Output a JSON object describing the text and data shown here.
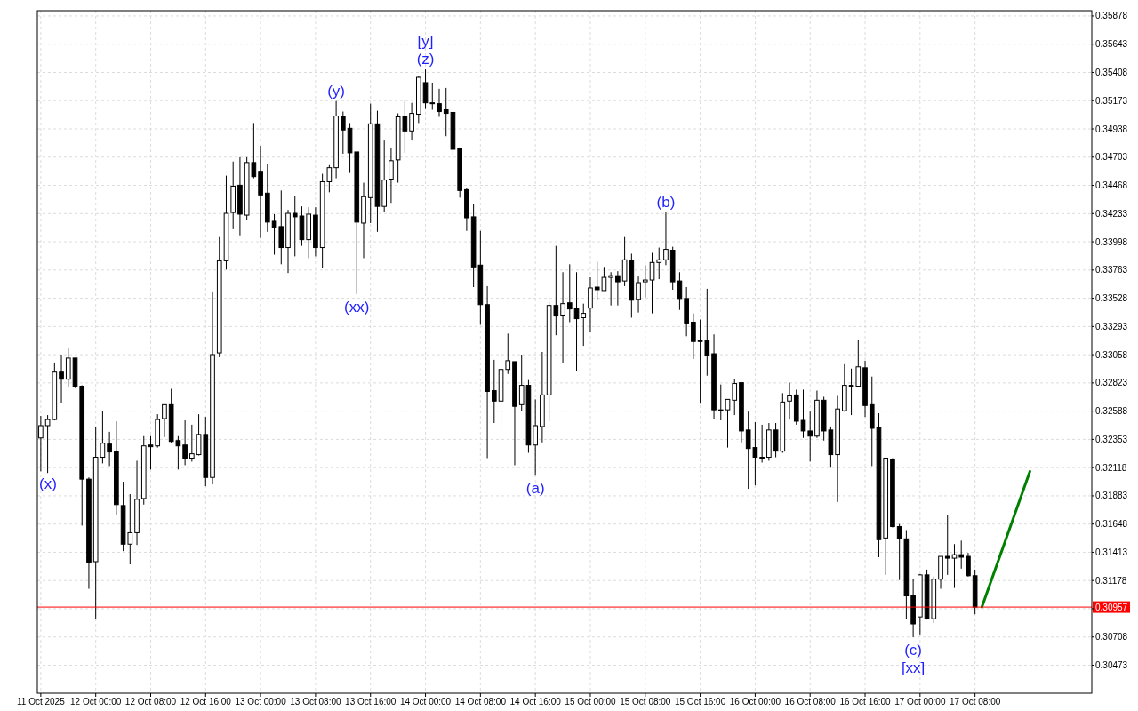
{
  "chart_data": {
    "type": "candlestick",
    "x": [
      "2025-10-11T16:00",
      "2025-10-11T17:00",
      "2025-10-11T18:00",
      "2025-10-11T19:00",
      "2025-10-11T20:00",
      "2025-10-11T21:00",
      "2025-10-11T22:00",
      "2025-10-11T23:00",
      "2025-10-12T00:00",
      "2025-10-12T01:00",
      "2025-10-12T02:00",
      "2025-10-12T03:00",
      "2025-10-12T04:00",
      "2025-10-12T05:00",
      "2025-10-12T06:00",
      "2025-10-12T07:00",
      "2025-10-12T08:00",
      "2025-10-12T09:00",
      "2025-10-12T10:00",
      "2025-10-12T11:00",
      "2025-10-12T12:00",
      "2025-10-12T13:00",
      "2025-10-12T14:00",
      "2025-10-12T15:00",
      "2025-10-12T16:00",
      "2025-10-12T17:00",
      "2025-10-12T18:00",
      "2025-10-12T19:00",
      "2025-10-12T20:00",
      "2025-10-12T21:00",
      "2025-10-12T22:00",
      "2025-10-12T23:00",
      "2025-10-13T00:00",
      "2025-10-13T01:00",
      "2025-10-13T02:00",
      "2025-10-13T03:00",
      "2025-10-13T04:00",
      "2025-10-13T05:00",
      "2025-10-13T06:00",
      "2025-10-13T07:00",
      "2025-10-13T08:00",
      "2025-10-13T09:00",
      "2025-10-13T10:00",
      "2025-10-13T11:00",
      "2025-10-13T12:00",
      "2025-10-13T13:00",
      "2025-10-13T14:00",
      "2025-10-13T15:00",
      "2025-10-13T16:00",
      "2025-10-13T17:00",
      "2025-10-13T18:00",
      "2025-10-13T19:00",
      "2025-10-13T20:00",
      "2025-10-13T21:00",
      "2025-10-13T22:00",
      "2025-10-13T23:00",
      "2025-10-14T00:00",
      "2025-10-14T01:00",
      "2025-10-14T02:00",
      "2025-10-14T03:00",
      "2025-10-14T04:00",
      "2025-10-14T05:00",
      "2025-10-14T06:00",
      "2025-10-14T07:00",
      "2025-10-14T08:00",
      "2025-10-14T09:00",
      "2025-10-14T10:00",
      "2025-10-14T11:00",
      "2025-10-14T12:00",
      "2025-10-14T13:00",
      "2025-10-14T14:00",
      "2025-10-14T15:00",
      "2025-10-14T16:00",
      "2025-10-14T17:00",
      "2025-10-14T18:00",
      "2025-10-14T19:00",
      "2025-10-14T20:00",
      "2025-10-14T21:00",
      "2025-10-14T22:00",
      "2025-10-14T23:00",
      "2025-10-15T00:00",
      "2025-10-15T01:00",
      "2025-10-15T02:00",
      "2025-10-15T03:00",
      "2025-10-15T04:00",
      "2025-10-15T05:00",
      "2025-10-15T06:00",
      "2025-10-15T07:00",
      "2025-10-15T08:00",
      "2025-10-15T09:00",
      "2025-10-15T10:00",
      "2025-10-15T11:00",
      "2025-10-15T12:00",
      "2025-10-15T13:00",
      "2025-10-15T14:00",
      "2025-10-15T15:00",
      "2025-10-15T16:00",
      "2025-10-15T17:00",
      "2025-10-15T18:00",
      "2025-10-15T19:00",
      "2025-10-15T20:00",
      "2025-10-15T21:00",
      "2025-10-15T22:00",
      "2025-10-15T23:00",
      "2025-10-16T00:00",
      "2025-10-16T01:00",
      "2025-10-16T02:00",
      "2025-10-16T03:00",
      "2025-10-16T04:00",
      "2025-10-16T05:00",
      "2025-10-16T06:00",
      "2025-10-16T07:00",
      "2025-10-16T08:00",
      "2025-10-16T09:00",
      "2025-10-16T10:00",
      "2025-10-16T11:00",
      "2025-10-16T12:00",
      "2025-10-16T13:00",
      "2025-10-16T14:00",
      "2025-10-16T15:00",
      "2025-10-16T16:00",
      "2025-10-16T17:00",
      "2025-10-16T18:00",
      "2025-10-16T19:00",
      "2025-10-16T20:00",
      "2025-10-16T21:00",
      "2025-10-16T22:00",
      "2025-10-16T23:00",
      "2025-10-17T00:00",
      "2025-10-17T01:00",
      "2025-10-17T02:00",
      "2025-10-17T03:00",
      "2025-10-17T04:00",
      "2025-10-17T05:00",
      "2025-10-17T06:00",
      "2025-10-17T07:00",
      "2025-10-17T08:00"
    ],
    "ohlc": [
      [
        0.32365,
        0.32548,
        0.32087,
        0.32467
      ],
      [
        0.32467,
        0.32555,
        0.32073,
        0.32518
      ],
      [
        0.32518,
        0.32993,
        0.32511,
        0.32913
      ],
      [
        0.32913,
        0.33059,
        0.32657,
        0.32854
      ],
      [
        0.32854,
        0.3311,
        0.32789,
        0.3303
      ],
      [
        0.3303,
        0.3303,
        0.32781,
        0.32789
      ],
      [
        0.32796,
        0.32803,
        0.31635,
        0.32022
      ],
      [
        0.32022,
        0.32036,
        0.31109,
        0.31328
      ],
      [
        0.31335,
        0.3246,
        0.3086,
        0.32204
      ],
      [
        0.32204,
        0.32591,
        0.32153,
        0.32321
      ],
      [
        0.32314,
        0.32416,
        0.32131,
        0.32248
      ],
      [
        0.32255,
        0.32504,
        0.31722,
        0.3181
      ],
      [
        0.31802,
        0.32,
        0.31423,
        0.31481
      ],
      [
        0.31481,
        0.31897,
        0.31313,
        0.31576
      ],
      [
        0.31576,
        0.32175,
        0.31474,
        0.31854
      ],
      [
        0.31861,
        0.3238,
        0.3181,
        0.32299
      ],
      [
        0.32306,
        0.3238,
        0.32102,
        0.32292
      ],
      [
        0.32299,
        0.32562,
        0.32285,
        0.32518
      ],
      [
        0.32526,
        0.32642,
        0.32372,
        0.32642
      ],
      [
        0.32642,
        0.32774,
        0.32321,
        0.32336
      ],
      [
        0.32343,
        0.3238,
        0.32102,
        0.32299
      ],
      [
        0.32306,
        0.32511,
        0.32138,
        0.32197
      ],
      [
        0.32197,
        0.32475,
        0.32168,
        0.32233
      ],
      [
        0.32226,
        0.32562,
        0.32219,
        0.32394
      ],
      [
        0.32394,
        0.3254,
        0.31963,
        0.32036
      ],
      [
        0.32036,
        0.33585,
        0.31978,
        0.33059
      ],
      [
        0.33073,
        0.34038,
        0.33037,
        0.3384
      ],
      [
        0.3384,
        0.34549,
        0.33767,
        0.34235
      ],
      [
        0.34242,
        0.34666,
        0.34103,
        0.34461
      ],
      [
        0.34469,
        0.34702,
        0.34052,
        0.34228
      ],
      [
        0.3422,
        0.34702,
        0.34176,
        0.34658
      ],
      [
        0.34658,
        0.34987,
        0.34527,
        0.34541
      ],
      [
        0.34585,
        0.34797,
        0.3403,
        0.34388
      ],
      [
        0.34403,
        0.34644,
        0.34081,
        0.34162
      ],
      [
        0.34169,
        0.34228,
        0.33891,
        0.34118
      ],
      [
        0.34125,
        0.34425,
        0.33811,
        0.3395
      ],
      [
        0.3395,
        0.34264,
        0.33738,
        0.34235
      ],
      [
        0.34235,
        0.34381,
        0.33877,
        0.34206
      ],
      [
        0.34213,
        0.34293,
        0.33964,
        0.34016
      ],
      [
        0.34016,
        0.34286,
        0.33862,
        0.34228
      ],
      [
        0.3422,
        0.34286,
        0.33877,
        0.3395
      ],
      [
        0.3395,
        0.34564,
        0.33782,
        0.34498
      ],
      [
        0.34498,
        0.34636,
        0.3441,
        0.34615
      ],
      [
        0.34615,
        0.3517,
        0.34527,
        0.35045
      ],
      [
        0.35045,
        0.35082,
        0.34731,
        0.34929
      ],
      [
        0.34943,
        0.34987,
        0.34571,
        0.34739
      ],
      [
        0.34746,
        0.34746,
        0.33563,
        0.34162
      ],
      [
        0.34154,
        0.3449,
        0.33862,
        0.34374
      ],
      [
        0.34366,
        0.35148,
        0.34154,
        0.3498
      ],
      [
        0.3498,
        0.35089,
        0.34081,
        0.34293
      ],
      [
        0.34293,
        0.34841,
        0.34249,
        0.34512
      ],
      [
        0.3452,
        0.34775,
        0.34322,
        0.34673
      ],
      [
        0.3468,
        0.35067,
        0.3449,
        0.35038
      ],
      [
        0.35038,
        0.3517,
        0.34739,
        0.34921
      ],
      [
        0.34921,
        0.35155,
        0.34841,
        0.35067
      ],
      [
        0.3506,
        0.35374,
        0.34987,
        0.35367
      ],
      [
        0.35323,
        0.35433,
        0.35104,
        0.35155
      ],
      [
        0.35155,
        0.35323,
        0.35097,
        0.35148
      ],
      [
        0.35148,
        0.35272,
        0.35038,
        0.35082
      ],
      [
        0.35097,
        0.35279,
        0.34877,
        0.35067
      ],
      [
        0.35075,
        0.35075,
        0.34724,
        0.34768
      ],
      [
        0.34775,
        0.34783,
        0.34366,
        0.34425
      ],
      [
        0.34432,
        0.34447,
        0.34089,
        0.34198
      ],
      [
        0.34206,
        0.34315,
        0.33621,
        0.33789
      ],
      [
        0.33804,
        0.34089,
        0.33307,
        0.33475
      ],
      [
        0.33475,
        0.33629,
        0.32197,
        0.32752
      ],
      [
        0.32759,
        0.33015,
        0.32489,
        0.32672
      ],
      [
        0.32672,
        0.3311,
        0.32431,
        0.32935
      ],
      [
        0.32935,
        0.33234,
        0.32898,
        0.33008
      ],
      [
        0.33,
        0.33,
        0.32138,
        0.32628
      ],
      [
        0.32642,
        0.33059,
        0.32591,
        0.32803
      ],
      [
        0.32803,
        0.32847,
        0.32241,
        0.32306
      ],
      [
        0.32306,
        0.32686,
        0.32051,
        0.32467
      ],
      [
        0.3246,
        0.33081,
        0.32328,
        0.32723
      ],
      [
        0.32723,
        0.33497,
        0.32504,
        0.33468
      ],
      [
        0.33468,
        0.33964,
        0.3322,
        0.3338
      ],
      [
        0.33388,
        0.33745,
        0.32986,
        0.33483
      ],
      [
        0.3349,
        0.33811,
        0.33329,
        0.33439
      ],
      [
        0.33446,
        0.33745,
        0.3292,
        0.33358
      ],
      [
        0.33366,
        0.33483,
        0.33132,
        0.33402
      ],
      [
        0.33446,
        0.33702,
        0.33249,
        0.33614
      ],
      [
        0.33621,
        0.33833,
        0.33512,
        0.33599
      ],
      [
        0.33592,
        0.33789,
        0.33592,
        0.33702
      ],
      [
        0.33702,
        0.33745,
        0.33468,
        0.33716
      ],
      [
        0.33716,
        0.33753,
        0.33468,
        0.33665
      ],
      [
        0.33672,
        0.34038,
        0.33629,
        0.33848
      ],
      [
        0.3384,
        0.33899,
        0.33366,
        0.33512
      ],
      [
        0.33519,
        0.33709,
        0.33409,
        0.33658
      ],
      [
        0.33665,
        0.33804,
        0.33534,
        0.3368
      ],
      [
        0.3368,
        0.33906,
        0.33402,
        0.33826
      ],
      [
        0.33826,
        0.3395,
        0.33687,
        0.33848
      ],
      [
        0.33848,
        0.34242,
        0.33804,
        0.33935
      ],
      [
        0.33928,
        0.33957,
        0.33599,
        0.33665
      ],
      [
        0.33672,
        0.33745,
        0.33431,
        0.33526
      ],
      [
        0.33526,
        0.33621,
        0.33212,
        0.33322
      ],
      [
        0.33329,
        0.33402,
        0.33022,
        0.33168
      ],
      [
        0.33176,
        0.33351,
        0.3265,
        0.33168
      ],
      [
        0.33176,
        0.33607,
        0.32883,
        0.33051
      ],
      [
        0.33066,
        0.33227,
        0.32526,
        0.32599
      ],
      [
        0.32599,
        0.3281,
        0.32511,
        0.32591
      ],
      [
        0.32599,
        0.32686,
        0.32285,
        0.32686
      ],
      [
        0.32679,
        0.32854,
        0.32555,
        0.32818
      ],
      [
        0.32825,
        0.32825,
        0.32328,
        0.32423
      ],
      [
        0.32431,
        0.32584,
        0.31941,
        0.32277
      ],
      [
        0.32285,
        0.32496,
        0.3197,
        0.32204
      ],
      [
        0.32204,
        0.32475,
        0.3216,
        0.32197
      ],
      [
        0.32204,
        0.32489,
        0.32175,
        0.32431
      ],
      [
        0.32431,
        0.32489,
        0.32204,
        0.32255
      ],
      [
        0.32255,
        0.32738,
        0.32241,
        0.32664
      ],
      [
        0.32672,
        0.32825,
        0.32518,
        0.32715
      ],
      [
        0.32723,
        0.32767,
        0.32475,
        0.32504
      ],
      [
        0.32511,
        0.32767,
        0.32365,
        0.32423
      ],
      [
        0.32423,
        0.32584,
        0.32168,
        0.3238
      ],
      [
        0.3238,
        0.32759,
        0.32365,
        0.32679
      ],
      [
        0.32679,
        0.32708,
        0.32343,
        0.32423
      ],
      [
        0.32431,
        0.3246,
        0.32117,
        0.32226
      ],
      [
        0.32226,
        0.32715,
        0.31832,
        0.32606
      ],
      [
        0.32591,
        0.32979,
        0.32584,
        0.32803
      ],
      [
        0.32803,
        0.32942,
        0.32555,
        0.32796
      ],
      [
        0.32796,
        0.33183,
        0.32789,
        0.32957
      ],
      [
        0.32949,
        0.33008,
        0.3254,
        0.32635
      ],
      [
        0.32642,
        0.32876,
        0.32131,
        0.32445
      ],
      [
        0.32453,
        0.3257,
        0.31372,
        0.31518
      ],
      [
        0.31532,
        0.32197,
        0.31225,
        0.32197
      ],
      [
        0.32189,
        0.32197,
        0.3162,
        0.31627
      ],
      [
        0.31627,
        0.31649,
        0.31182,
        0.31525
      ],
      [
        0.31525,
        0.31598,
        0.3086,
        0.3105
      ],
      [
        0.3105,
        0.31189,
        0.30707,
        0.30817
      ],
      [
        0.30875,
        0.31233,
        0.30729,
        0.31225
      ],
      [
        0.31225,
        0.31269,
        0.30853,
        0.3086
      ],
      [
        0.3086,
        0.31211,
        0.30824,
        0.31189
      ],
      [
        0.31189,
        0.31379,
        0.31109,
        0.31379
      ],
      [
        0.31379,
        0.31722,
        0.31225,
        0.31364
      ],
      [
        0.31364,
        0.31481,
        0.31116,
        0.31393
      ],
      [
        0.31393,
        0.3151,
        0.31277,
        0.31372
      ],
      [
        0.31379,
        0.31408,
        0.31211,
        0.31218
      ],
      [
        0.31218,
        0.31269,
        0.30897,
        0.30957
      ]
    ],
    "series": [
      {
        "type": "line",
        "color": "#008000",
        "x": [
          "2025-10-17T09:00",
          "2025-10-17T16:00"
        ],
        "values": [
          0.30957,
          0.32087
        ]
      }
    ],
    "xlim": [
      "2025-10-11T15:30",
      "2025-10-18T01:00"
    ],
    "xticks": [
      {
        "value": "2025-10-11T16:00",
        "label": "11 Oct 2025"
      },
      {
        "value": "2025-10-12T00:00",
        "label": "12 Oct 00:00"
      },
      {
        "value": "2025-10-12T08:00",
        "label": "12 Oct 08:00"
      },
      {
        "value": "2025-10-12T16:00",
        "label": "12 Oct 16:00"
      },
      {
        "value": "2025-10-13T00:00",
        "label": "13 Oct 00:00"
      },
      {
        "value": "2025-10-13T08:00",
        "label": "13 Oct 08:00"
      },
      {
        "value": "2025-10-13T16:00",
        "label": "13 Oct 16:00"
      },
      {
        "value": "2025-10-14T00:00",
        "label": "14 Oct 00:00"
      },
      {
        "value": "2025-10-14T08:00",
        "label": "14 Oct 08:00"
      },
      {
        "value": "2025-10-14T16:00",
        "label": "14 Oct 16:00"
      },
      {
        "value": "2025-10-15T00:00",
        "label": "15 Oct 00:00"
      },
      {
        "value": "2025-10-15T08:00",
        "label": "15 Oct 08:00"
      },
      {
        "value": "2025-10-15T16:00",
        "label": "15 Oct 16:00"
      },
      {
        "value": "2025-10-16T00:00",
        "label": "16 Oct 00:00"
      },
      {
        "value": "2025-10-16T08:00",
        "label": "16 Oct 08:00"
      },
      {
        "value": "2025-10-16T16:00",
        "label": "16 Oct 16:00"
      },
      {
        "value": "2025-10-17T00:00",
        "label": "17 Oct 00:00"
      },
      {
        "value": "2025-10-17T08:00",
        "label": "17 Oct 08:00"
      }
    ],
    "ylim": [
      0.3024,
      0.35922
    ],
    "yticks": [
      0.35878,
      0.35643,
      0.35408,
      0.35173,
      0.34938,
      0.34703,
      0.34468,
      0.34233,
      0.33998,
      0.33763,
      0.33528,
      0.33293,
      0.33058,
      0.32823,
      0.32588,
      0.32353,
      0.32118,
      0.31883,
      0.31648,
      0.31413,
      0.31178,
      {
        "value": 0.30943,
        "label": null
      },
      0.30708,
      0.30473
    ],
    "grid": true,
    "ref_lines": [
      {
        "axis": "y",
        "value": 0.30957,
        "label": "0.30957",
        "color": "#ff0000"
      }
    ],
    "annotations": [
      {
        "text": "(x)",
        "x": "2025-10-11T16:00",
        "y": 0.32087
      },
      {
        "text": "(y)",
        "x": "2025-10-13T11:00",
        "y": 0.3517
      },
      {
        "text": "(xx)",
        "x": "2025-10-13T14:00",
        "y": 0.33563
      },
      {
        "text": "(z)",
        "x": "2025-10-14T00:00",
        "y": 0.35433
      },
      {
        "text": "[y]",
        "x": "2025-10-14T00:00",
        "y": 0.35433
      },
      {
        "text": "(a)",
        "x": "2025-10-14T16:00",
        "y": 0.32051
      },
      {
        "text": "(b)",
        "x": "2025-10-15T11:00",
        "y": 0.34242
      },
      {
        "text": "(c)",
        "x": "2025-10-16T23:00",
        "y": 0.30707
      },
      {
        "text": "[xx]",
        "x": "2025-10-16T23:00",
        "y": 0.30707
      }
    ]
  }
}
